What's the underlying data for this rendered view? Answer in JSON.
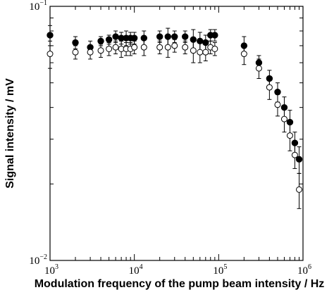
{
  "chart_data": {
    "type": "scatter",
    "xlabel": "Modulation frequency of the pump beam intensity / Hz",
    "ylabel": "Signal intensity / mV",
    "xscale": "log",
    "yscale": "log",
    "xlim": [
      1000,
      1000000
    ],
    "ylim": [
      0.01,
      0.1
    ],
    "x_ticks": [
      {
        "value": 1000,
        "base": "10",
        "exp": "3"
      },
      {
        "value": 10000,
        "base": "10",
        "exp": "4"
      },
      {
        "value": 100000,
        "base": "10",
        "exp": "5"
      },
      {
        "value": 1000000,
        "base": "10",
        "exp": "6"
      }
    ],
    "y_ticks": [
      {
        "value": 0.01,
        "base": "10",
        "exp": "−2"
      },
      {
        "value": 0.1,
        "base": "10",
        "exp": "−1"
      }
    ],
    "grid": false,
    "series": [
      {
        "marker": "filled-circle",
        "points": [
          {
            "x": 1000,
            "y": 0.077,
            "err": 0.007
          },
          {
            "x": 2000,
            "y": 0.072,
            "err": 0.004
          },
          {
            "x": 3000,
            "y": 0.069,
            "err": 0.004
          },
          {
            "x": 4000,
            "y": 0.073,
            "err": 0.003
          },
          {
            "x": 5000,
            "y": 0.074,
            "err": 0.003
          },
          {
            "x": 6000,
            "y": 0.076,
            "err": 0.004
          },
          {
            "x": 7000,
            "y": 0.075,
            "err": 0.004
          },
          {
            "x": 8000,
            "y": 0.075,
            "err": 0.005
          },
          {
            "x": 9000,
            "y": 0.075,
            "err": 0.004
          },
          {
            "x": 10000,
            "y": 0.075,
            "err": 0.004
          },
          {
            "x": 13000,
            "y": 0.075,
            "err": 0.005
          },
          {
            "x": 20000,
            "y": 0.076,
            "err": 0.004
          },
          {
            "x": 25000,
            "y": 0.076,
            "err": 0.006
          },
          {
            "x": 30000,
            "y": 0.076,
            "err": 0.004
          },
          {
            "x": 40000,
            "y": 0.076,
            "err": 0.004
          },
          {
            "x": 50000,
            "y": 0.074,
            "err": 0.007
          },
          {
            "x": 60000,
            "y": 0.073,
            "err": 0.006
          },
          {
            "x": 70000,
            "y": 0.072,
            "err": 0.005
          },
          {
            "x": 80000,
            "y": 0.077,
            "err": 0.004
          },
          {
            "x": 90000,
            "y": 0.077,
            "err": 0.004
          },
          {
            "x": 200000,
            "y": 0.07,
            "err": 0.006
          },
          {
            "x": 300000,
            "y": 0.06,
            "err": 0.004
          },
          {
            "x": 400000,
            "y": 0.052,
            "err": 0.004
          },
          {
            "x": 500000,
            "y": 0.046,
            "err": 0.004
          },
          {
            "x": 600000,
            "y": 0.04,
            "err": 0.004
          },
          {
            "x": 700000,
            "y": 0.035,
            "err": 0.004
          },
          {
            "x": 800000,
            "y": 0.029,
            "err": 0.003
          },
          {
            "x": 900000,
            "y": 0.025,
            "err": 0.003
          }
        ]
      },
      {
        "marker": "open-circle",
        "points": [
          {
            "x": 1000,
            "y": 0.065,
            "err": 0.008
          },
          {
            "x": 2000,
            "y": 0.066,
            "err": 0.004
          },
          {
            "x": 3000,
            "y": 0.066,
            "err": 0.004
          },
          {
            "x": 4000,
            "y": 0.067,
            "err": 0.004
          },
          {
            "x": 5000,
            "y": 0.068,
            "err": 0.004
          },
          {
            "x": 6000,
            "y": 0.069,
            "err": 0.004
          },
          {
            "x": 7000,
            "y": 0.068,
            "err": 0.005
          },
          {
            "x": 8000,
            "y": 0.068,
            "err": 0.004
          },
          {
            "x": 9000,
            "y": 0.068,
            "err": 0.004
          },
          {
            "x": 10000,
            "y": 0.069,
            "err": 0.004
          },
          {
            "x": 13000,
            "y": 0.069,
            "err": 0.005
          },
          {
            "x": 20000,
            "y": 0.069,
            "err": 0.004
          },
          {
            "x": 25000,
            "y": 0.069,
            "err": 0.006
          },
          {
            "x": 30000,
            "y": 0.07,
            "err": 0.004
          },
          {
            "x": 40000,
            "y": 0.069,
            "err": 0.004
          },
          {
            "x": 50000,
            "y": 0.067,
            "err": 0.007
          },
          {
            "x": 60000,
            "y": 0.066,
            "err": 0.006
          },
          {
            "x": 70000,
            "y": 0.066,
            "err": 0.005
          },
          {
            "x": 80000,
            "y": 0.069,
            "err": 0.004
          },
          {
            "x": 90000,
            "y": 0.068,
            "err": 0.004
          },
          {
            "x": 200000,
            "y": 0.065,
            "err": 0.006
          },
          {
            "x": 300000,
            "y": 0.057,
            "err": 0.005
          },
          {
            "x": 400000,
            "y": 0.048,
            "err": 0.005
          },
          {
            "x": 500000,
            "y": 0.041,
            "err": 0.004
          },
          {
            "x": 600000,
            "y": 0.036,
            "err": 0.004
          },
          {
            "x": 700000,
            "y": 0.031,
            "err": 0.004
          },
          {
            "x": 800000,
            "y": 0.026,
            "err": 0.003
          },
          {
            "x": 900000,
            "y": 0.019,
            "err": 0.003
          }
        ]
      }
    ]
  }
}
